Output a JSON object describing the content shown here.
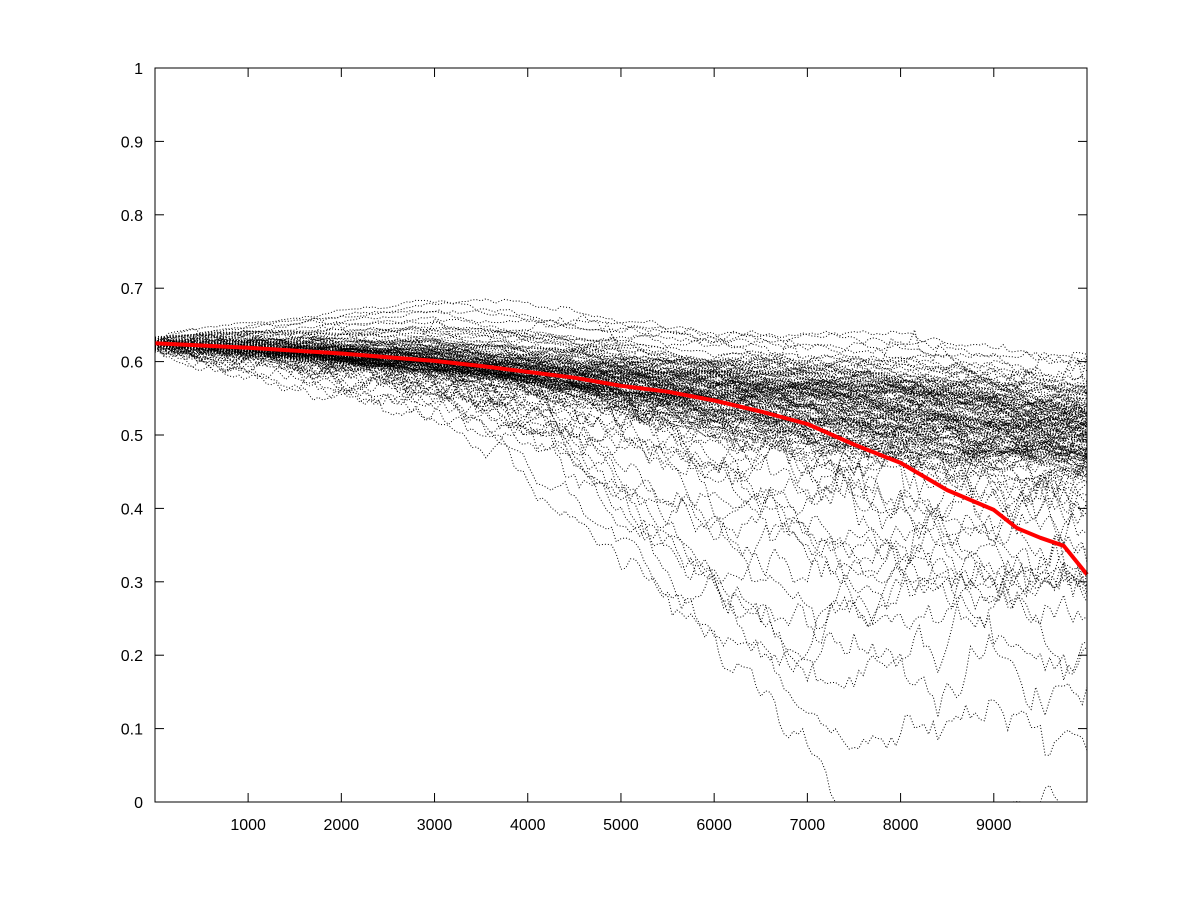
{
  "chart_data": {
    "type": "line",
    "title": "",
    "xlabel": "",
    "ylabel": "",
    "xlim": [
      1,
      10000
    ],
    "ylim": [
      0,
      1
    ],
    "grid": false,
    "legend": "none",
    "x_ticks": [
      1000,
      2000,
      3000,
      4000,
      5000,
      6000,
      7000,
      8000,
      9000
    ],
    "y_ticks": [
      0,
      0.1,
      0.2,
      0.3,
      0.4,
      0.5,
      0.6,
      0.7,
      0.8,
      0.9,
      1
    ],
    "y_tick_labels": [
      "0",
      "0.1",
      "0.2",
      "0.3",
      "0.4",
      "0.5",
      "0.6",
      "0.7",
      "0.8",
      "0.9",
      "1"
    ],
    "series": [
      {
        "style": "solid",
        "color": "#ff0000",
        "x": [
          1,
          500,
          1000,
          1500,
          2000,
          2500,
          3000,
          3500,
          4000,
          4500,
          5000,
          5500,
          6000,
          6500,
          7000,
          7500,
          8000,
          8500,
          9000,
          9250,
          9500,
          9750,
          10000
        ],
        "y": [
          0.625,
          0.622,
          0.619,
          0.615,
          0.611,
          0.606,
          0.601,
          0.594,
          0.586,
          0.578,
          0.567,
          0.559,
          0.547,
          0.532,
          0.515,
          0.487,
          0.462,
          0.425,
          0.398,
          0.373,
          0.36,
          0.349,
          0.31
        ]
      }
    ],
    "ensemble": {
      "style": "dotted",
      "color": "#000000",
      "description_count": 150,
      "x": [
        1,
        1000,
        2000,
        3000,
        4000,
        5000,
        6000,
        7000,
        8000,
        9000,
        10000
      ],
      "upper": [
        0.635,
        0.66,
        0.68,
        0.7,
        0.69,
        0.68,
        0.665,
        0.655,
        0.65,
        0.635,
        0.61
      ],
      "median": [
        0.625,
        0.617,
        0.608,
        0.6,
        0.59,
        0.58,
        0.57,
        0.56,
        0.55,
        0.535,
        0.52
      ],
      "lower": [
        0.615,
        0.595,
        0.57,
        0.53,
        0.46,
        0.31,
        0.14,
        0.05,
        0.0,
        0.0,
        0.0
      ]
    }
  }
}
